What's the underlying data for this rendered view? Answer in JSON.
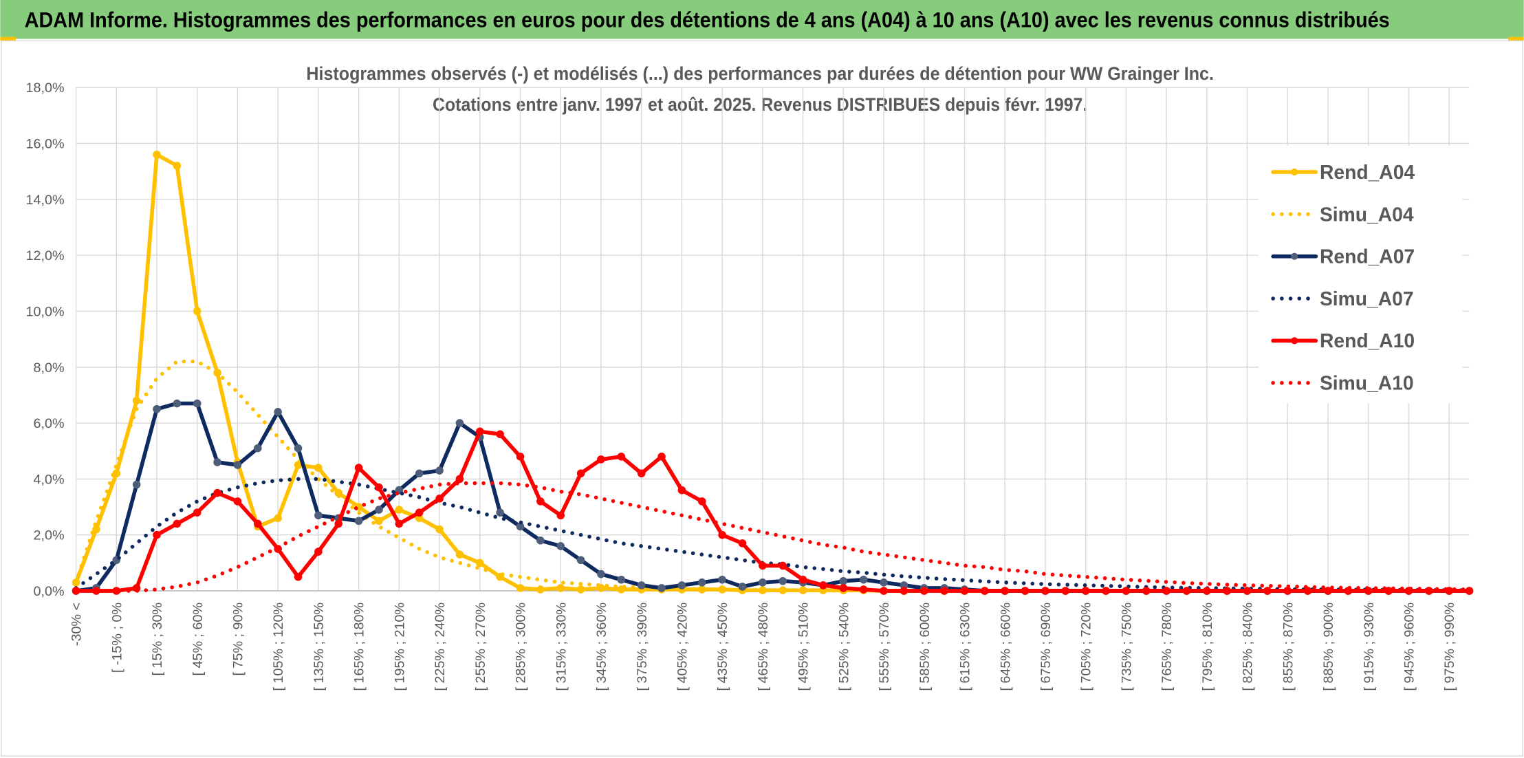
{
  "header": {
    "title": "ADAM Informe. Histogrammes des performances en euros pour des détentions de 4 ans (A04) à 10 ans (A10) avec les revenus connus distribués"
  },
  "chart_data": {
    "type": "line",
    "title": "Histogrammes observés (-) et modélisés (...) des performances par durées de détention pour WW Grainger Inc.",
    "subtitle": "Cotations entre janv. 1997 et août. 2025. Revenus DISTRIBUES depuis févr. 1997.",
    "categories": [
      "-30% <",
      null,
      "[ -15% ; 0%",
      null,
      "[ 15% ; 30%",
      null,
      "[ 45% ; 60%",
      null,
      "[ 75% ; 90%",
      null,
      "[ 105% ; 120%",
      null,
      "[ 135% ; 150%",
      null,
      "[ 165% ; 180%",
      null,
      "[ 195% ; 210%",
      null,
      "[ 225% ; 240%",
      null,
      "[ 255% ; 270%",
      null,
      "[ 285% ; 300%",
      null,
      "[ 315% ; 330%",
      null,
      "[ 345% ; 360%",
      null,
      "[ 375% ; 390%",
      null,
      "[ 405% ; 420%",
      null,
      "[ 435% ; 450%",
      null,
      "[ 465% ; 480%",
      null,
      "[ 495% ; 510%",
      null,
      "[ 525% ; 540%",
      null,
      "[ 555% ; 570%",
      null,
      "[ 585% ; 600%",
      null,
      "[ 615% ; 630%",
      null,
      "[ 645% ; 660%",
      null,
      "[ 675% ; 690%",
      null,
      "[ 705% ; 720%",
      null,
      "[ 735% ; 750%",
      null,
      "[ 765% ; 780%",
      null,
      "[ 795% ; 810%",
      null,
      "[ 825% ; 840%",
      null,
      "[ 855% ; 870%",
      null,
      "[ 885% ; 900%",
      null,
      "[ 915% ; 930%",
      null,
      "[ 945% ; 960%",
      null,
      "[ 975% ; 990%",
      null
    ],
    "series": [
      {
        "name": "Rend_A04",
        "color": "#ffc000",
        "line_style": "solid",
        "markers": true,
        "values": [
          0.3,
          2.2,
          4.2,
          6.8,
          15.6,
          15.2,
          10.0,
          7.8,
          4.6,
          2.3,
          2.6,
          4.5,
          4.4,
          3.5,
          3.0,
          2.5,
          2.9,
          2.6,
          2.2,
          1.3,
          1.0,
          0.5,
          0.1,
          0.05,
          0.1,
          0.05,
          0.1,
          0.05,
          0.05,
          0.05,
          0.05,
          0.05,
          0.05,
          0.02,
          0.02,
          0.02,
          0.02,
          0.02,
          0.02,
          0.02,
          0,
          0,
          0,
          0,
          0,
          0,
          0,
          0,
          0,
          0,
          0,
          0,
          0,
          0,
          0,
          0,
          0,
          0,
          0,
          0,
          0,
          0,
          0,
          0,
          0,
          0,
          0,
          0,
          0,
          0
        ]
      },
      {
        "name": "Simu_A04",
        "color": "#ffc000",
        "line_style": "dotted",
        "markers": false,
        "values": [
          0.3,
          2.5,
          4.5,
          6.5,
          7.6,
          8.2,
          8.2,
          7.8,
          7.1,
          6.3,
          5.5,
          4.7,
          4.0,
          3.4,
          2.8,
          2.3,
          1.9,
          1.5,
          1.2,
          1.0,
          0.8,
          0.6,
          0.5,
          0.4,
          0.3,
          0.25,
          0.2,
          0.15,
          0.12,
          0.1,
          0.08,
          0.06,
          0.05,
          0.04,
          0.03,
          0.02,
          0.02,
          0.01,
          0.01,
          0.01,
          0,
          0,
          0,
          0,
          0,
          0,
          0,
          0,
          0,
          0,
          0,
          0,
          0,
          0,
          0,
          0,
          0,
          0,
          0,
          0,
          0,
          0,
          0,
          0,
          0,
          0,
          0,
          0,
          0,
          0
        ]
      },
      {
        "name": "Rend_A07",
        "color": "#0f2a5e",
        "marker_color": "#4d5d7a",
        "line_style": "solid",
        "markers": true,
        "values": [
          0,
          0.1,
          1.1,
          3.8,
          6.5,
          6.7,
          6.7,
          4.6,
          4.5,
          5.1,
          6.4,
          5.1,
          2.7,
          2.6,
          2.5,
          2.9,
          3.6,
          4.2,
          4.3,
          6.0,
          5.5,
          2.8,
          2.3,
          1.8,
          1.6,
          1.1,
          0.6,
          0.4,
          0.2,
          0.1,
          0.2,
          0.3,
          0.4,
          0.15,
          0.3,
          0.35,
          0.3,
          0.2,
          0.35,
          0.4,
          0.3,
          0.2,
          0.1,
          0.1,
          0.05,
          0,
          0,
          0,
          0,
          0,
          0,
          0,
          0,
          0,
          0,
          0,
          0,
          0,
          0,
          0,
          0,
          0,
          0,
          0,
          0,
          0,
          0,
          0,
          0,
          0
        ]
      },
      {
        "name": "Simu_A07",
        "color": "#0f2a5e",
        "line_style": "dotted",
        "markers": false,
        "values": [
          0.1,
          0.6,
          1.1,
          1.7,
          2.3,
          2.8,
          3.2,
          3.5,
          3.7,
          3.85,
          3.95,
          4.0,
          4.0,
          3.9,
          3.8,
          3.65,
          3.5,
          3.35,
          3.15,
          3.0,
          2.8,
          2.6,
          2.45,
          2.3,
          2.15,
          2.0,
          1.85,
          1.7,
          1.6,
          1.5,
          1.4,
          1.3,
          1.2,
          1.1,
          1.0,
          0.95,
          0.85,
          0.78,
          0.7,
          0.65,
          0.58,
          0.52,
          0.47,
          0.42,
          0.38,
          0.34,
          0.3,
          0.27,
          0.24,
          0.22,
          0.2,
          0.18,
          0.16,
          0.14,
          0.12,
          0.11,
          0.1,
          0.09,
          0.08,
          0.07,
          0.06,
          0.05,
          0.05,
          0.04,
          0.04,
          0.03,
          0.03,
          0.02,
          0.02,
          0.02
        ]
      },
      {
        "name": "Rend_A10",
        "color": "#ff0000",
        "line_style": "solid",
        "markers": true,
        "values": [
          0,
          0,
          0,
          0.1,
          2.0,
          2.4,
          2.8,
          3.5,
          3.2,
          2.4,
          1.5,
          0.5,
          1.4,
          2.4,
          4.4,
          3.7,
          2.4,
          2.8,
          3.3,
          4.0,
          5.7,
          5.6,
          4.8,
          3.2,
          2.7,
          4.2,
          4.7,
          4.8,
          4.2,
          4.8,
          3.6,
          3.2,
          2.0,
          1.7,
          0.9,
          0.9,
          0.4,
          0.2,
          0.1,
          0.05,
          0,
          0,
          0,
          0,
          0,
          0,
          0,
          0,
          0,
          0,
          0,
          0,
          0,
          0,
          0,
          0,
          0,
          0,
          0,
          0,
          0,
          0,
          0,
          0,
          0,
          0,
          0,
          0,
          0,
          0
        ]
      },
      {
        "name": "Simu_A10",
        "color": "#ff0000",
        "line_style": "dotted",
        "markers": false,
        "values": [
          0,
          0,
          0,
          0,
          0.05,
          0.15,
          0.3,
          0.55,
          0.85,
          1.2,
          1.55,
          1.95,
          2.3,
          2.65,
          3.0,
          3.3,
          3.5,
          3.65,
          3.8,
          3.85,
          3.85,
          3.85,
          3.8,
          3.7,
          3.55,
          3.45,
          3.3,
          3.15,
          3.0,
          2.85,
          2.7,
          2.55,
          2.4,
          2.25,
          2.1,
          1.95,
          1.8,
          1.65,
          1.55,
          1.4,
          1.3,
          1.2,
          1.1,
          1.0,
          0.9,
          0.85,
          0.75,
          0.7,
          0.6,
          0.55,
          0.5,
          0.45,
          0.4,
          0.36,
          0.32,
          0.28,
          0.25,
          0.22,
          0.2,
          0.18,
          0.16,
          0.14,
          0.12,
          0.11,
          0.1,
          0.09,
          0.08,
          0.07,
          0.06,
          0.05
        ]
      }
    ],
    "ylim": [
      0,
      18
    ],
    "yticks": [
      {
        "value": 0,
        "label": "0,0%"
      },
      {
        "value": 2,
        "label": "2,0%"
      },
      {
        "value": 4,
        "label": "4,0%"
      },
      {
        "value": 6,
        "label": "6,0%"
      },
      {
        "value": 8,
        "label": "8,0%"
      },
      {
        "value": 10,
        "label": "10,0%"
      },
      {
        "value": 12,
        "label": "12,0%"
      },
      {
        "value": 14,
        "label": "14,0%"
      },
      {
        "value": 16,
        "label": "16,0%"
      },
      {
        "value": 18,
        "label": "18,0%"
      }
    ],
    "grid": true,
    "legend": "right"
  }
}
